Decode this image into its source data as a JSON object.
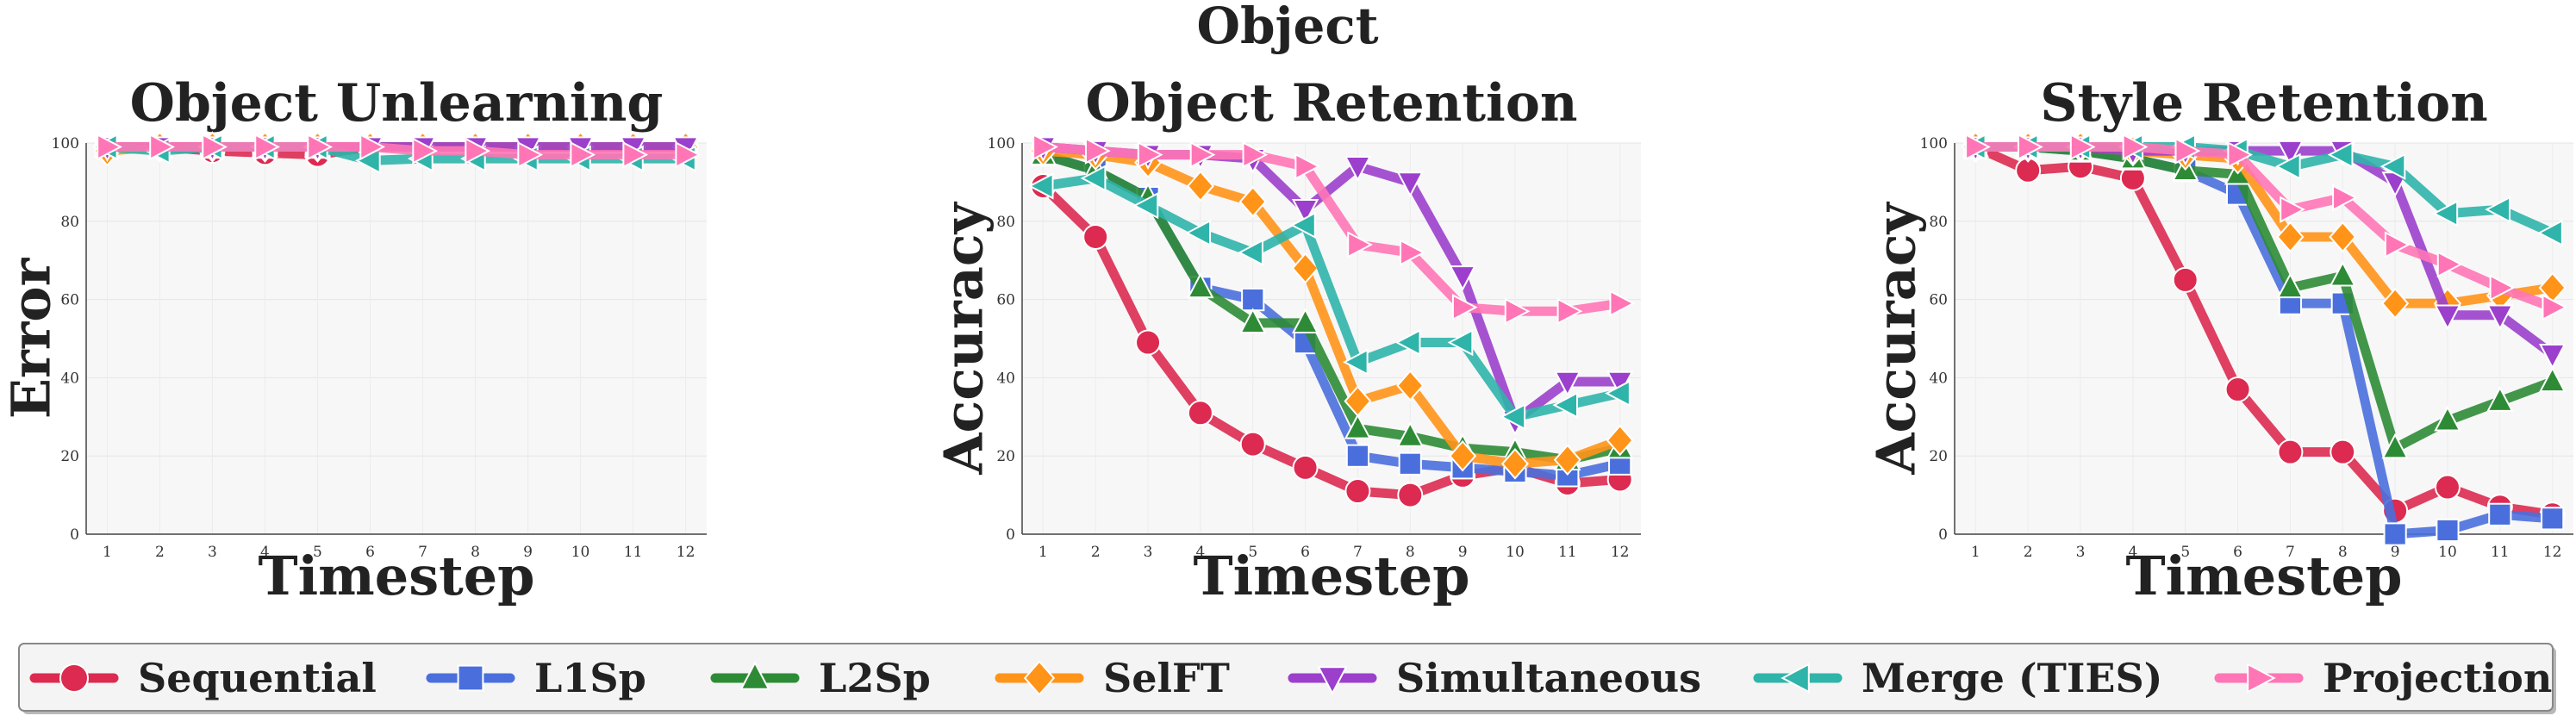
{
  "figure_title": "Object",
  "chart_data": [
    {
      "type": "line",
      "title": "Object Unlearning",
      "xlabel": "Timestep",
      "ylabel": "Error",
      "x": [
        1,
        2,
        3,
        4,
        5,
        6,
        7,
        8,
        9,
        10,
        11,
        12
      ],
      "xticks": [
        "1",
        "2",
        "3",
        "4",
        "5",
        "6",
        "7",
        "8",
        "9",
        "10",
        "11",
        "12"
      ],
      "yticks": [
        "0",
        "20",
        "40",
        "60",
        "80",
        "100"
      ],
      "ylim": [
        0,
        100
      ],
      "grid": true,
      "series": [
        {
          "name": "Sequential",
          "values": [
            99,
            99,
            98,
            97.5,
            97,
            99,
            99,
            99,
            99,
            99,
            99,
            99
          ]
        },
        {
          "name": "L1Sp",
          "values": [
            99,
            99,
            99,
            99,
            99,
            99,
            99,
            99,
            99,
            99,
            99,
            99
          ]
        },
        {
          "name": "L2Sp",
          "values": [
            99,
            99,
            99,
            99,
            99,
            99,
            99,
            99,
            99,
            99,
            99,
            99
          ]
        },
        {
          "name": "SelFT",
          "values": [
            98,
            99,
            99,
            99,
            99,
            99,
            99,
            99,
            99,
            99,
            99,
            99
          ]
        },
        {
          "name": "Simultaneous",
          "values": [
            99,
            99,
            99,
            99,
            99,
            99,
            99,
            99,
            99,
            99,
            99,
            99
          ]
        },
        {
          "name": "Merge (TIES)",
          "values": [
            99,
            98,
            99,
            99,
            99,
            95.5,
            96,
            96,
            96,
            96,
            96,
            96
          ]
        },
        {
          "name": "Projection",
          "values": [
            99,
            99,
            99,
            99,
            99,
            99,
            98,
            98,
            97,
            97,
            97,
            97
          ]
        }
      ]
    },
    {
      "type": "line",
      "title": "Object Retention",
      "xlabel": "Timestep",
      "ylabel": "Accuracy",
      "x": [
        1,
        2,
        3,
        4,
        5,
        6,
        7,
        8,
        9,
        10,
        11,
        12
      ],
      "xticks": [
        "1",
        "2",
        "3",
        "4",
        "5",
        "6",
        "7",
        "8",
        "9",
        "10",
        "11",
        "12"
      ],
      "yticks": [
        "0",
        "20",
        "40",
        "60",
        "80",
        "100"
      ],
      "ylim": [
        0,
        100
      ],
      "grid": true,
      "series": [
        {
          "name": "Sequential",
          "values": [
            89,
            76,
            49,
            31,
            23,
            17,
            11,
            10,
            15,
            17,
            13,
            14
          ]
        },
        {
          "name": "L1Sp",
          "values": [
            97,
            93,
            86,
            63,
            60,
            49,
            20,
            18,
            17,
            16,
            15,
            18
          ]
        },
        {
          "name": "L2Sp",
          "values": [
            97,
            93,
            86,
            63,
            54,
            54,
            27,
            25,
            22,
            21,
            19,
            22
          ]
        },
        {
          "name": "SelFT",
          "values": [
            98,
            97,
            95,
            89,
            85,
            68,
            34,
            38,
            20,
            18,
            19,
            24
          ]
        },
        {
          "name": "Simultaneous",
          "values": [
            99,
            98,
            97,
            97,
            96,
            83,
            94,
            90,
            66,
            29,
            39,
            39
          ]
        },
        {
          "name": "Merge (TIES)",
          "values": [
            89,
            91,
            84,
            77,
            72,
            79,
            44,
            49,
            49,
            30,
            33,
            36
          ]
        },
        {
          "name": "Projection",
          "values": [
            99,
            98,
            97,
            97,
            97,
            94,
            74,
            72,
            58,
            57,
            57,
            59
          ]
        }
      ]
    },
    {
      "type": "line",
      "title": "Style Retention",
      "xlabel": "Timestep",
      "ylabel": "Accuracy",
      "x": [
        1,
        2,
        3,
        4,
        5,
        6,
        7,
        8,
        9,
        10,
        11,
        12
      ],
      "xticks": [
        "1",
        "2",
        "3",
        "4",
        "5",
        "6",
        "7",
        "8",
        "9",
        "10",
        "11",
        "12"
      ],
      "yticks": [
        "0",
        "20",
        "40",
        "60",
        "80",
        "100"
      ],
      "ylim": [
        0,
        100
      ],
      "grid": true,
      "series": [
        {
          "name": "Sequential",
          "values": [
            99,
            93,
            94,
            91,
            65,
            37,
            21,
            21,
            6,
            12,
            7,
            5
          ]
        },
        {
          "name": "L1Sp",
          "values": [
            99,
            99,
            98,
            96,
            93,
            87,
            59,
            59,
            0,
            1,
            5,
            4
          ]
        },
        {
          "name": "L2Sp",
          "values": [
            99,
            99,
            98,
            96,
            93,
            92,
            63,
            66,
            22,
            29,
            34,
            39
          ]
        },
        {
          "name": "SelFT",
          "values": [
            99,
            99,
            99,
            98,
            97,
            96,
            76,
            76,
            59,
            59,
            61,
            63
          ]
        },
        {
          "name": "Simultaneous",
          "values": [
            99,
            99,
            99,
            98,
            98,
            98,
            98,
            98,
            90,
            56,
            56,
            46
          ]
        },
        {
          "name": "Merge (TIES)",
          "values": [
            99,
            99,
            99,
            99,
            99,
            98,
            94,
            97,
            94,
            82,
            83,
            77
          ]
        },
        {
          "name": "Projection",
          "values": [
            99,
            99,
            99,
            99,
            98,
            97,
            83,
            86,
            74,
            69,
            63,
            58
          ]
        }
      ]
    }
  ],
  "legend": {
    "placement": "bottom",
    "entries": [
      {
        "label": "Sequential",
        "color": "#dc2a50",
        "marker": "circle"
      },
      {
        "label": "L1Sp",
        "color": "#4a6fdd",
        "marker": "square"
      },
      {
        "label": "L2Sp",
        "color": "#2e8b35",
        "marker": "triangle-up"
      },
      {
        "label": "SelFT",
        "color": "#ff9418",
        "marker": "diamond"
      },
      {
        "label": "Simultaneous",
        "color": "#9b3fcc",
        "marker": "triangle-down"
      },
      {
        "label": "Merge (TIES)",
        "color": "#2fb4aa",
        "marker": "triangle-left"
      },
      {
        "label": "Projection",
        "color": "#ff75b5",
        "marker": "triangle-right"
      }
    ]
  }
}
